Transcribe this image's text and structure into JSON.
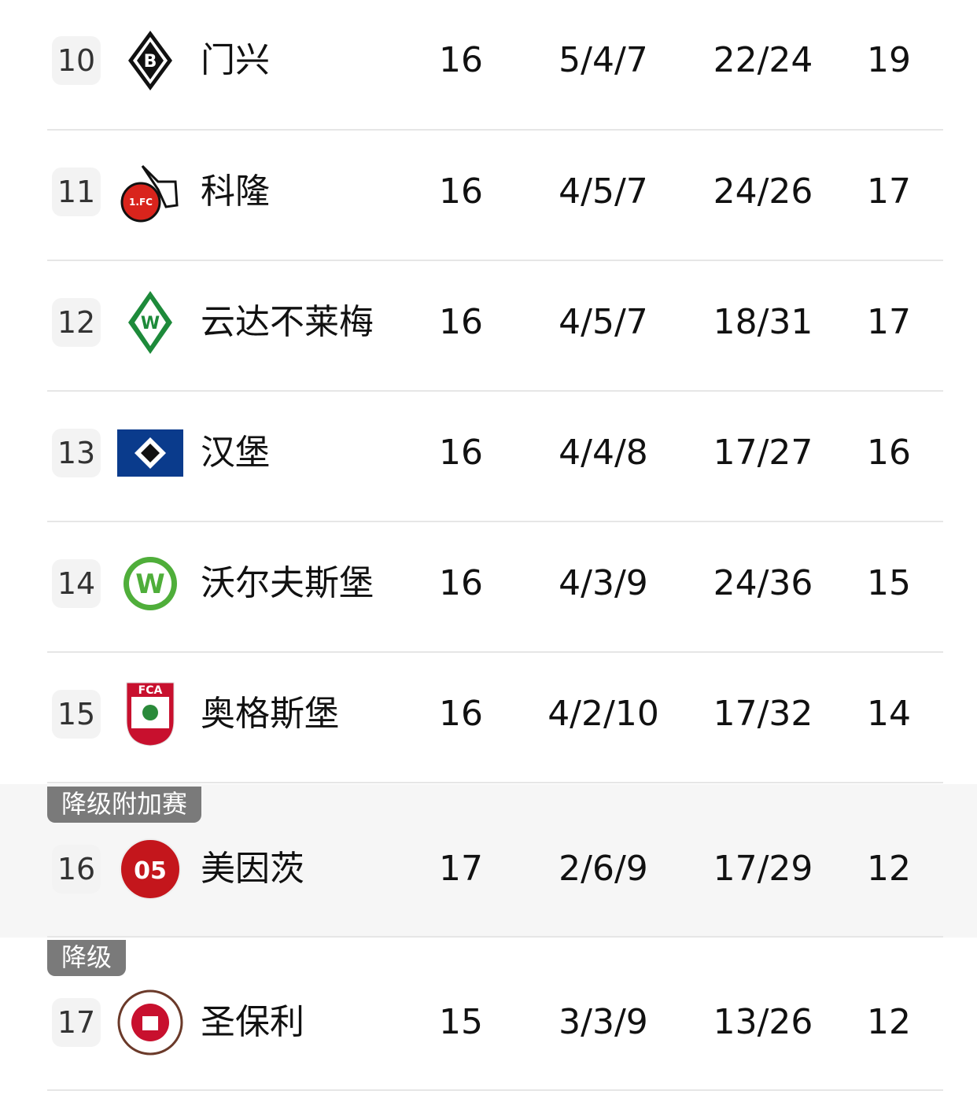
{
  "rows": [
    {
      "rank": "10",
      "team": "门兴",
      "played": "16",
      "wdl": "5/4/7",
      "goals": "22/24",
      "points": "19",
      "logo": "gladbach-logo"
    },
    {
      "rank": "11",
      "team": "科隆",
      "played": "16",
      "wdl": "4/5/7",
      "goals": "24/26",
      "points": "17",
      "logo": "koln-logo"
    },
    {
      "rank": "12",
      "team": "云达不莱梅",
      "played": "16",
      "wdl": "4/5/7",
      "goals": "18/31",
      "points": "17",
      "logo": "werder-logo"
    },
    {
      "rank": "13",
      "team": "汉堡",
      "played": "16",
      "wdl": "4/4/8",
      "goals": "17/27",
      "points": "16",
      "logo": "hamburg-logo"
    },
    {
      "rank": "14",
      "team": "沃尔夫斯堡",
      "played": "16",
      "wdl": "4/3/9",
      "goals": "24/36",
      "points": "15",
      "logo": "wolfsburg-logo"
    },
    {
      "rank": "15",
      "team": "奥格斯堡",
      "played": "16",
      "wdl": "4/2/10",
      "goals": "17/32",
      "points": "14",
      "logo": "augsburg-logo"
    },
    {
      "rank": "16",
      "team": "美因茨",
      "played": "17",
      "wdl": "2/6/9",
      "goals": "17/29",
      "points": "12",
      "logo": "mainz-logo",
      "zone": "降级附加赛"
    },
    {
      "rank": "17",
      "team": "圣保利",
      "played": "15",
      "wdl": "3/3/9",
      "goals": "13/26",
      "points": "12",
      "logo": "stpauli-logo",
      "zone": "降级"
    }
  ],
  "colors": {
    "zone_badge": "#7a7a7a",
    "zone_bg": "#f6f6f6"
  }
}
